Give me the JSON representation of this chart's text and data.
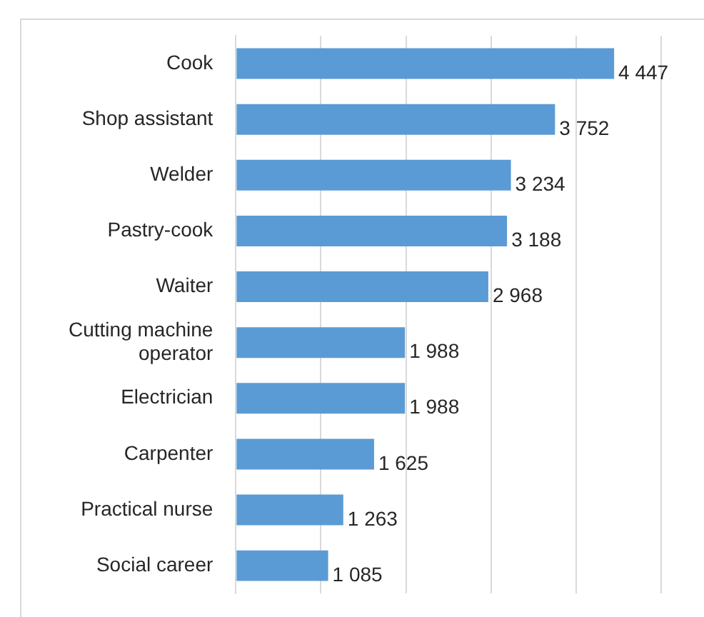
{
  "chart_data": {
    "type": "bar",
    "orientation": "horizontal",
    "categories": [
      "Cook",
      "Shop assistant",
      "Welder",
      "Pastry-cook",
      "Waiter",
      "Cutting machine operator",
      "Electrician",
      "Carpenter",
      "Practical nurse",
      "Social career"
    ],
    "values": [
      4447,
      3752,
      3234,
      3188,
      2968,
      1988,
      1988,
      1625,
      1263,
      1085
    ],
    "value_labels": [
      "4 447",
      "3 752",
      "3 234",
      "3 188",
      "2 968",
      "1 988",
      "1 988",
      "1 625",
      "1 263",
      "1 085"
    ],
    "color": "#5b9bd5",
    "xlim": [
      0,
      5000
    ],
    "xticks": [
      {
        "value": 0,
        "label": null
      },
      {
        "value": 1000,
        "label": null
      },
      {
        "value": 2000,
        "label": null
      },
      {
        "value": 3000,
        "label": null
      },
      {
        "value": 4000,
        "label": null
      },
      {
        "value": 5000,
        "label": null
      }
    ],
    "tick_labels": "y",
    "grid": "x",
    "legend": false
  }
}
